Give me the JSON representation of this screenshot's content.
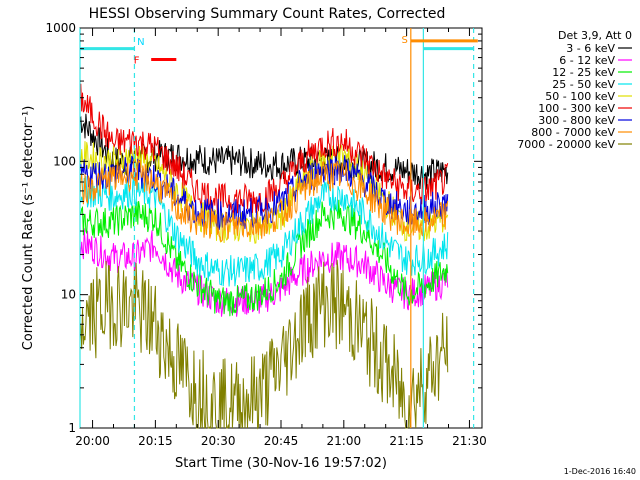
{
  "chart_data": {
    "type": "line",
    "title": "HESSI Observing Summary Count Rates, Corrected",
    "xlabel": "Start Time (30-Nov-16 19:57:02)",
    "ylabel": "Corrected Count Rate (s⁻¹ detector⁻¹)",
    "yscale": "log",
    "ylim": [
      1,
      1000
    ],
    "xlim": [
      "19:57",
      "21:33"
    ],
    "x_ticks": [
      "20:00",
      "20:15",
      "20:30",
      "20:45",
      "21:00",
      "21:15",
      "21:30"
    ],
    "y_ticks": [
      "1",
      "10",
      "100",
      "1000"
    ],
    "legend": {
      "title": "Det 3,9, Att 0",
      "placement": "right"
    },
    "timestamp": "1-Dec-2016 16:40",
    "annotations": [
      {
        "label": "N",
        "color": "#00d8ff"
      },
      {
        "label": "F",
        "color": "#ff0000"
      },
      {
        "label": "S",
        "color": "#ff8c00"
      }
    ],
    "markers": {
      "night_bars": [
        {
          "start": "19:57",
          "end": "20:10",
          "level": 700,
          "color": "#33e6e6"
        },
        {
          "start": "21:19",
          "end": "21:31",
          "level": 700,
          "color": "#33e6e6"
        }
      ],
      "flare_bar": {
        "start": "20:14",
        "end": "20:20",
        "level": 580,
        "color": "#ff0000"
      },
      "saa_bar": {
        "start": "21:16",
        "end": "21:32",
        "level": 800,
        "color": "#ff8c00"
      },
      "vlines": [
        {
          "t": "19:57",
          "color": "#33e6e6",
          "dashed": false
        },
        {
          "t": "20:10",
          "color": "#33e6e6",
          "dashed": true
        },
        {
          "t": "21:16",
          "color": "#ff8c00",
          "dashed": false
        },
        {
          "t": "21:19",
          "color": "#33e6e6",
          "dashed": false
        },
        {
          "t": "21:31",
          "color": "#33e6e6",
          "dashed": true
        }
      ]
    },
    "series": [
      {
        "name": "3 - 6 keV",
        "color": "#000000",
        "times": [
          "19:57",
          "20:05",
          "20:10",
          "20:15",
          "20:20",
          "20:25",
          "20:30",
          "20:35",
          "20:40",
          "20:45",
          "20:50",
          "20:55",
          "21:00",
          "21:05",
          "21:10",
          "21:15",
          "21:20",
          "21:25"
        ],
        "values": [
          210,
          100,
          100,
          110,
          110,
          105,
          100,
          100,
          95,
          95,
          100,
          100,
          100,
          95,
          90,
          85,
          80,
          85
        ]
      },
      {
        "name": "6 - 12 keV",
        "color": "#ff00ff",
        "times": [
          "19:57",
          "20:05",
          "20:10",
          "20:15",
          "20:20",
          "20:25",
          "20:30",
          "20:35",
          "20:40",
          "20:45",
          "20:50",
          "20:55",
          "21:00",
          "21:05",
          "21:10",
          "21:15",
          "21:20",
          "21:25"
        ],
        "values": [
          25,
          19,
          19,
          24,
          14,
          11,
          9,
          9,
          9,
          11,
          15,
          19,
          19,
          17,
          12,
          10,
          11,
          13
        ]
      },
      {
        "name": "12 - 25 keV",
        "color": "#00ee00",
        "times": [
          "19:57",
          "20:05",
          "20:10",
          "20:15",
          "20:20",
          "20:25",
          "20:30",
          "20:35",
          "20:40",
          "20:45",
          "20:50",
          "20:55",
          "21:00",
          "21:05",
          "21:10",
          "21:15",
          "21:20",
          "21:25"
        ],
        "values": [
          35,
          35,
          40,
          38,
          18,
          12,
          9,
          9,
          10,
          13,
          25,
          40,
          40,
          30,
          18,
          10,
          12,
          16
        ]
      },
      {
        "name": "25 - 50 keV",
        "color": "#00e5ee",
        "times": [
          "19:57",
          "20:05",
          "20:10",
          "20:15",
          "20:20",
          "20:25",
          "20:30",
          "20:35",
          "20:40",
          "20:45",
          "20:50",
          "20:55",
          "21:00",
          "21:05",
          "21:10",
          "21:15",
          "21:20",
          "21:25"
        ],
        "values": [
          60,
          55,
          60,
          55,
          28,
          18,
          15,
          15,
          16,
          20,
          35,
          55,
          55,
          40,
          25,
          18,
          19,
          24
        ]
      },
      {
        "name": "50 - 100 keV",
        "color": "#e0e000",
        "times": [
          "19:57",
          "20:05",
          "20:10",
          "20:15",
          "20:20",
          "20:25",
          "20:30",
          "20:35",
          "20:40",
          "20:45",
          "20:50",
          "20:55",
          "21:00",
          "21:05",
          "21:10",
          "21:15",
          "21:20",
          "21:25"
        ],
        "values": [
          110,
          100,
          110,
          95,
          60,
          40,
          32,
          32,
          32,
          38,
          70,
          100,
          110,
          80,
          50,
          32,
          32,
          40
        ]
      },
      {
        "name": "100 - 300 keV",
        "color": "#ee0000",
        "times": [
          "19:57",
          "20:05",
          "20:10",
          "20:15",
          "20:20",
          "20:25",
          "20:30",
          "20:35",
          "20:40",
          "20:45",
          "20:50",
          "20:55",
          "21:00",
          "21:05",
          "21:10",
          "21:15",
          "21:20",
          "21:25"
        ],
        "values": [
          300,
          135,
          145,
          125,
          90,
          60,
          52,
          52,
          52,
          65,
          100,
          135,
          140,
          105,
          75,
          60,
          60,
          75
        ]
      },
      {
        "name": "300 - 800 keV",
        "color": "#0000dd",
        "times": [
          "19:57",
          "20:05",
          "20:10",
          "20:15",
          "20:20",
          "20:25",
          "20:30",
          "20:35",
          "20:40",
          "20:45",
          "20:50",
          "20:55",
          "21:00",
          "21:05",
          "21:10",
          "21:15",
          "21:20",
          "21:25"
        ],
        "values": [
          80,
          80,
          85,
          75,
          55,
          42,
          40,
          40,
          42,
          48,
          70,
          88,
          88,
          70,
          50,
          42,
          44,
          50
        ]
      },
      {
        "name": "800 - 7000 keV",
        "color": "#ff8c00",
        "times": [
          "19:57",
          "20:05",
          "20:10",
          "20:15",
          "20:20",
          "20:25",
          "20:30",
          "20:35",
          "20:40",
          "20:45",
          "20:50",
          "20:55",
          "21:00",
          "21:05",
          "21:10",
          "21:15",
          "21:20",
          "21:25"
        ],
        "values": [
          60,
          75,
          80,
          70,
          45,
          35,
          33,
          33,
          34,
          40,
          60,
          78,
          78,
          60,
          42,
          33,
          35,
          40
        ]
      },
      {
        "name": "7000 - 20000 keV",
        "color": "#808000",
        "times": [
          "19:57",
          "20:05",
          "20:10",
          "20:15",
          "20:20",
          "20:25",
          "20:30",
          "20:35",
          "20:40",
          "20:45",
          "20:50",
          "20:55",
          "21:00",
          "21:05",
          "21:10",
          "21:15",
          "21:20",
          "21:25"
        ],
        "values": [
          6,
          9,
          8,
          6,
          3,
          2,
          1.5,
          1.5,
          1.8,
          3,
          6,
          9,
          8,
          5,
          3,
          1.5,
          2.5,
          4
        ]
      }
    ]
  }
}
